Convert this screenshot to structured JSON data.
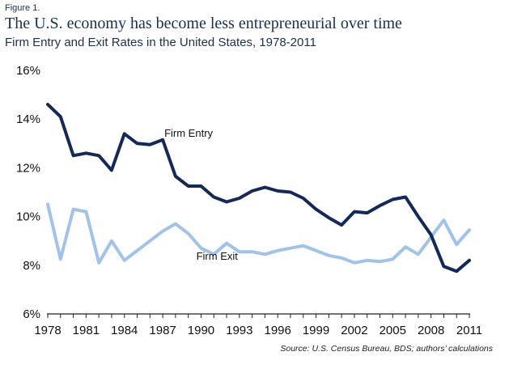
{
  "header": {
    "figure_label": "Figure 1.",
    "title": "The U.S. economy has become less entrepreneurial over time",
    "subtitle": "Firm Entry and Exit Rates in the United States, 1978-2011"
  },
  "source": "Source: U.S. Census Bureau, BDS; authors’ calculations",
  "chart_data": {
    "type": "line",
    "title": "Firm Entry and Exit Rates in the United States, 1978-2011",
    "xlabel": "",
    "ylabel": "",
    "ylim": [
      6,
      16
    ],
    "yticks": [
      6,
      8,
      10,
      12,
      14,
      16
    ],
    "ytick_labels": [
      "6%",
      "8%",
      "10%",
      "12%",
      "14%",
      "16%"
    ],
    "xlim": [
      1978,
      2011
    ],
    "xticks": [
      1978,
      1981,
      1984,
      1987,
      1990,
      1993,
      1996,
      1999,
      2002,
      2005,
      2008,
      2011
    ],
    "xtick_labels": [
      "1978",
      "1981",
      "1984",
      "1987",
      "1990",
      "1993",
      "1996",
      "1999",
      "2002",
      "2005",
      "2008",
      "2011"
    ],
    "grid": false,
    "x": [
      1978,
      1979,
      1980,
      1981,
      1982,
      1983,
      1984,
      1985,
      1986,
      1987,
      1988,
      1989,
      1990,
      1991,
      1992,
      1993,
      1994,
      1995,
      1996,
      1997,
      1998,
      1999,
      2000,
      2001,
      2002,
      2003,
      2004,
      2005,
      2006,
      2007,
      2008,
      2009,
      2010,
      2011
    ],
    "series": [
      {
        "name": "Firm Entry",
        "color": "#13295b",
        "values": [
          14.6,
          14.1,
          12.5,
          12.6,
          12.5,
          11.9,
          13.4,
          13.0,
          12.95,
          13.15,
          11.65,
          11.25,
          11.25,
          10.8,
          10.6,
          10.75,
          11.05,
          11.2,
          11.05,
          11.0,
          10.75,
          10.3,
          9.95,
          9.65,
          10.2,
          10.15,
          10.45,
          10.7,
          10.8,
          10.0,
          9.25,
          7.95,
          7.75,
          8.2
        ]
      },
      {
        "name": "Firm Exit",
        "color": "#9fc3ec",
        "values": [
          10.5,
          8.25,
          10.3,
          10.2,
          8.1,
          9.0,
          8.2,
          8.6,
          9.0,
          9.4,
          9.7,
          9.3,
          8.7,
          8.45,
          8.9,
          8.55,
          8.55,
          8.45,
          8.6,
          8.7,
          8.8,
          8.6,
          8.4,
          8.3,
          8.1,
          8.2,
          8.15,
          8.25,
          8.75,
          8.45,
          9.15,
          9.85,
          8.85,
          9.45
        ]
      }
    ]
  }
}
